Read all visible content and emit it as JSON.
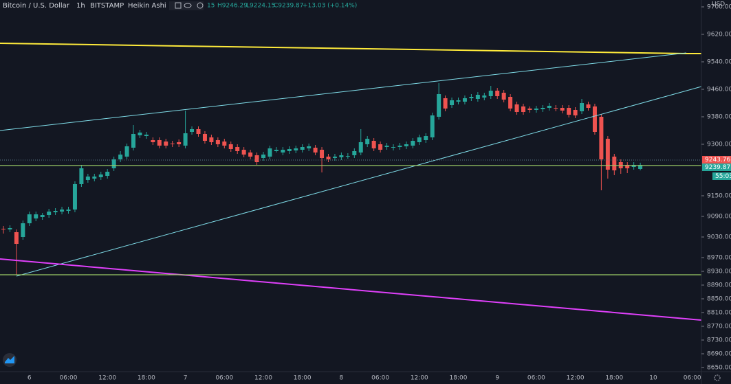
{
  "chart_data": {
    "type": "candlestick",
    "title": "Bitcoin / U.S. Dollar",
    "interval": "1h",
    "exchange": "BITSTAMP",
    "chart_style": "Heikin Ashi",
    "legend_fragment": "15",
    "legend_high": "H9246.29",
    "legend_low": "L9224.15",
    "legend_close": "C9239.87",
    "legend_change": "+13.03 (+0.14%)",
    "currency": "USD",
    "price_labels": [
      "9243.76",
      "9239.87",
      "55:03"
    ],
    "up_color": "#26a69a",
    "down_color": "#ef5350",
    "grid": false,
    "ylim": [
      8640,
      9720
    ],
    "yticks": [
      {
        "value": 9700,
        "label": "9700.00"
      },
      {
        "value": 9620,
        "label": "9620.00"
      },
      {
        "value": 9540,
        "label": "9540.00"
      },
      {
        "value": 9460,
        "label": "9460.00"
      },
      {
        "value": 9380,
        "label": "9380.00"
      },
      {
        "value": 9300,
        "label": "9300.00"
      },
      {
        "value": 9150,
        "label": "9150.00"
      },
      {
        "value": 9090,
        "label": "9090.00"
      },
      {
        "value": 9030,
        "label": "9030.00"
      },
      {
        "value": 8970,
        "label": "8970.00"
      },
      {
        "value": 8930,
        "label": "8930.00"
      },
      {
        "value": 8890,
        "label": "8890.00"
      },
      {
        "value": 8850,
        "label": "8850.00"
      },
      {
        "value": 8810,
        "label": "8810.00"
      },
      {
        "value": 8770,
        "label": "8770.00"
      },
      {
        "value": 8730,
        "label": "8730.00"
      },
      {
        "value": 8690,
        "label": "8690.00"
      },
      {
        "value": 8650,
        "label": "8650.00"
      }
    ],
    "categories": [
      null,
      null,
      null,
      null,
      "6",
      null,
      null,
      null,
      null,
      null,
      "06:00",
      null,
      null,
      null,
      null,
      null,
      "12:00",
      null,
      null,
      null,
      null,
      null,
      "18:00",
      null,
      null,
      null,
      null,
      null,
      "7",
      null,
      null,
      null,
      null,
      null,
      "06:00",
      null,
      null,
      null,
      null,
      null,
      "12:00",
      null,
      null,
      null,
      null,
      null,
      "18:00",
      null,
      null,
      null,
      null,
      null,
      "8",
      null,
      null,
      null,
      null,
      null,
      "06:00",
      null,
      null,
      null,
      null,
      null,
      "12:00",
      null,
      null,
      null,
      null,
      null,
      "18:00",
      null,
      null,
      null,
      null,
      null,
      "9",
      null,
      null,
      null,
      null,
      null,
      "06:00",
      null,
      null,
      null,
      null,
      null,
      "12:00",
      null,
      null,
      null,
      null,
      null,
      "18:00",
      null,
      null,
      null,
      null,
      null,
      "10",
      null,
      null,
      null,
      null,
      null,
      "06:00"
    ],
    "open": [
      9054,
      9052,
      9044,
      9030,
      9070,
      9084,
      9088,
      9094,
      9102,
      9104,
      9106,
      9110,
      9184,
      9196,
      9200,
      9204,
      9208,
      9230,
      9256,
      9264,
      9290,
      9326,
      9324,
      9312,
      9312,
      9308,
      9302,
      9306,
      9296,
      9336,
      9344,
      9330,
      9320,
      9312,
      9308,
      9300,
      9292,
      9284,
      9276,
      9268,
      9260,
      9264,
      9280,
      9276,
      9280,
      9282,
      9284,
      9288,
      9290,
      9284,
      9264,
      9260,
      9262,
      9264,
      9268,
      9276,
      9300,
      9310,
      9300,
      9292,
      9290,
      9292,
      9294,
      9296,
      9306,
      9312,
      9320,
      9380,
      9434,
      9414,
      9424,
      9424,
      9434,
      9432,
      9436,
      9440,
      9456,
      9450,
      9438,
      9416,
      9410,
      9404,
      9400,
      9402,
      9406,
      9406,
      9406,
      9406,
      9400,
      9396,
      9416,
      9410,
      9380,
      9316,
      9264,
      9248,
      9240,
      9234,
      9228,
      null,
      null,
      null,
      null,
      null,
      null,
      null,
      null
    ],
    "high": [
      9062,
      9064,
      9052,
      9078,
      9104,
      9104,
      9100,
      9112,
      9114,
      9118,
      9118,
      9192,
      9240,
      9214,
      9214,
      9220,
      9228,
      9264,
      9280,
      9302,
      9356,
      9342,
      9336,
      9320,
      9320,
      9316,
      9310,
      9314,
      9398,
      9352,
      9352,
      9338,
      9328,
      9320,
      9316,
      9308,
      9300,
      9292,
      9284,
      9276,
      9278,
      9296,
      9292,
      9292,
      9294,
      9296,
      9300,
      9302,
      9298,
      9292,
      9272,
      9272,
      9276,
      9274,
      9288,
      9344,
      9324,
      9318,
      9308,
      9304,
      9300,
      9304,
      9308,
      9318,
      9328,
      9332,
      9392,
      9478,
      9442,
      9436,
      9436,
      9442,
      9446,
      9452,
      9450,
      9470,
      9464,
      9458,
      9446,
      9424,
      9418,
      9410,
      9412,
      9414,
      9420,
      9414,
      9414,
      9414,
      9408,
      9432,
      9424,
      9418,
      9388,
      9324,
      9272,
      9256,
      9248,
      9248,
      9246.29,
      null,
      null,
      null,
      null,
      null,
      null,
      null,
      null
    ],
    "low": [
      9040,
      9044,
      8920,
      9022,
      9062,
      9076,
      9080,
      9086,
      9094,
      9096,
      9098,
      9102,
      9176,
      9188,
      9192,
      9196,
      9200,
      9222,
      9248,
      9256,
      9282,
      9318,
      9316,
      9298,
      9288,
      9288,
      9292,
      9292,
      9288,
      9328,
      9322,
      9302,
      9298,
      9292,
      9288,
      9278,
      9272,
      9262,
      9256,
      9240,
      9252,
      9256,
      9276,
      9268,
      9272,
      9274,
      9276,
      9280,
      9268,
      9218,
      9248,
      9252,
      9254,
      9258,
      9260,
      9268,
      9292,
      9280,
      9276,
      9284,
      9282,
      9284,
      9286,
      9288,
      9298,
      9304,
      9312,
      9372,
      9396,
      9406,
      9416,
      9416,
      9426,
      9424,
      9428,
      9432,
      9432,
      9422,
      9396,
      9386,
      9386,
      9392,
      9392,
      9394,
      9398,
      9396,
      9390,
      9378,
      9376,
      9388,
      9398,
      9328,
      9166,
      9200,
      9210,
      9214,
      9216,
      9226,
      9224.15,
      null,
      null,
      null,
      null,
      null,
      null,
      null,
      null
    ],
    "close": [
      9052,
      9056,
      9010,
      9070,
      9096,
      9096,
      9094,
      9104,
      9106,
      9110,
      9110,
      9184,
      9230,
      9206,
      9206,
      9212,
      9220,
      9256,
      9270,
      9294,
      9330,
      9334,
      9328,
      9306,
      9296,
      9296,
      9300,
      9300,
      9332,
      9344,
      9330,
      9310,
      9306,
      9300,
      9296,
      9286,
      9280,
      9270,
      9264,
      9248,
      9270,
      9288,
      9284,
      9284,
      9286,
      9288,
      9292,
      9294,
      9276,
      9260,
      9256,
      9264,
      9268,
      9266,
      9280,
      9306,
      9316,
      9288,
      9284,
      9296,
      9292,
      9296,
      9300,
      9310,
      9320,
      9324,
      9384,
      9446,
      9404,
      9428,
      9428,
      9434,
      9438,
      9444,
      9442,
      9456,
      9440,
      9430,
      9404,
      9394,
      9394,
      9400,
      9404,
      9406,
      9412,
      9404,
      9398,
      9386,
      9384,
      9420,
      9406,
      9336,
      9256,
      9226,
      9224,
      9230,
      9230,
      9240,
      9239.87,
      null,
      null,
      null,
      null,
      null,
      null,
      null,
      null
    ]
  }
}
